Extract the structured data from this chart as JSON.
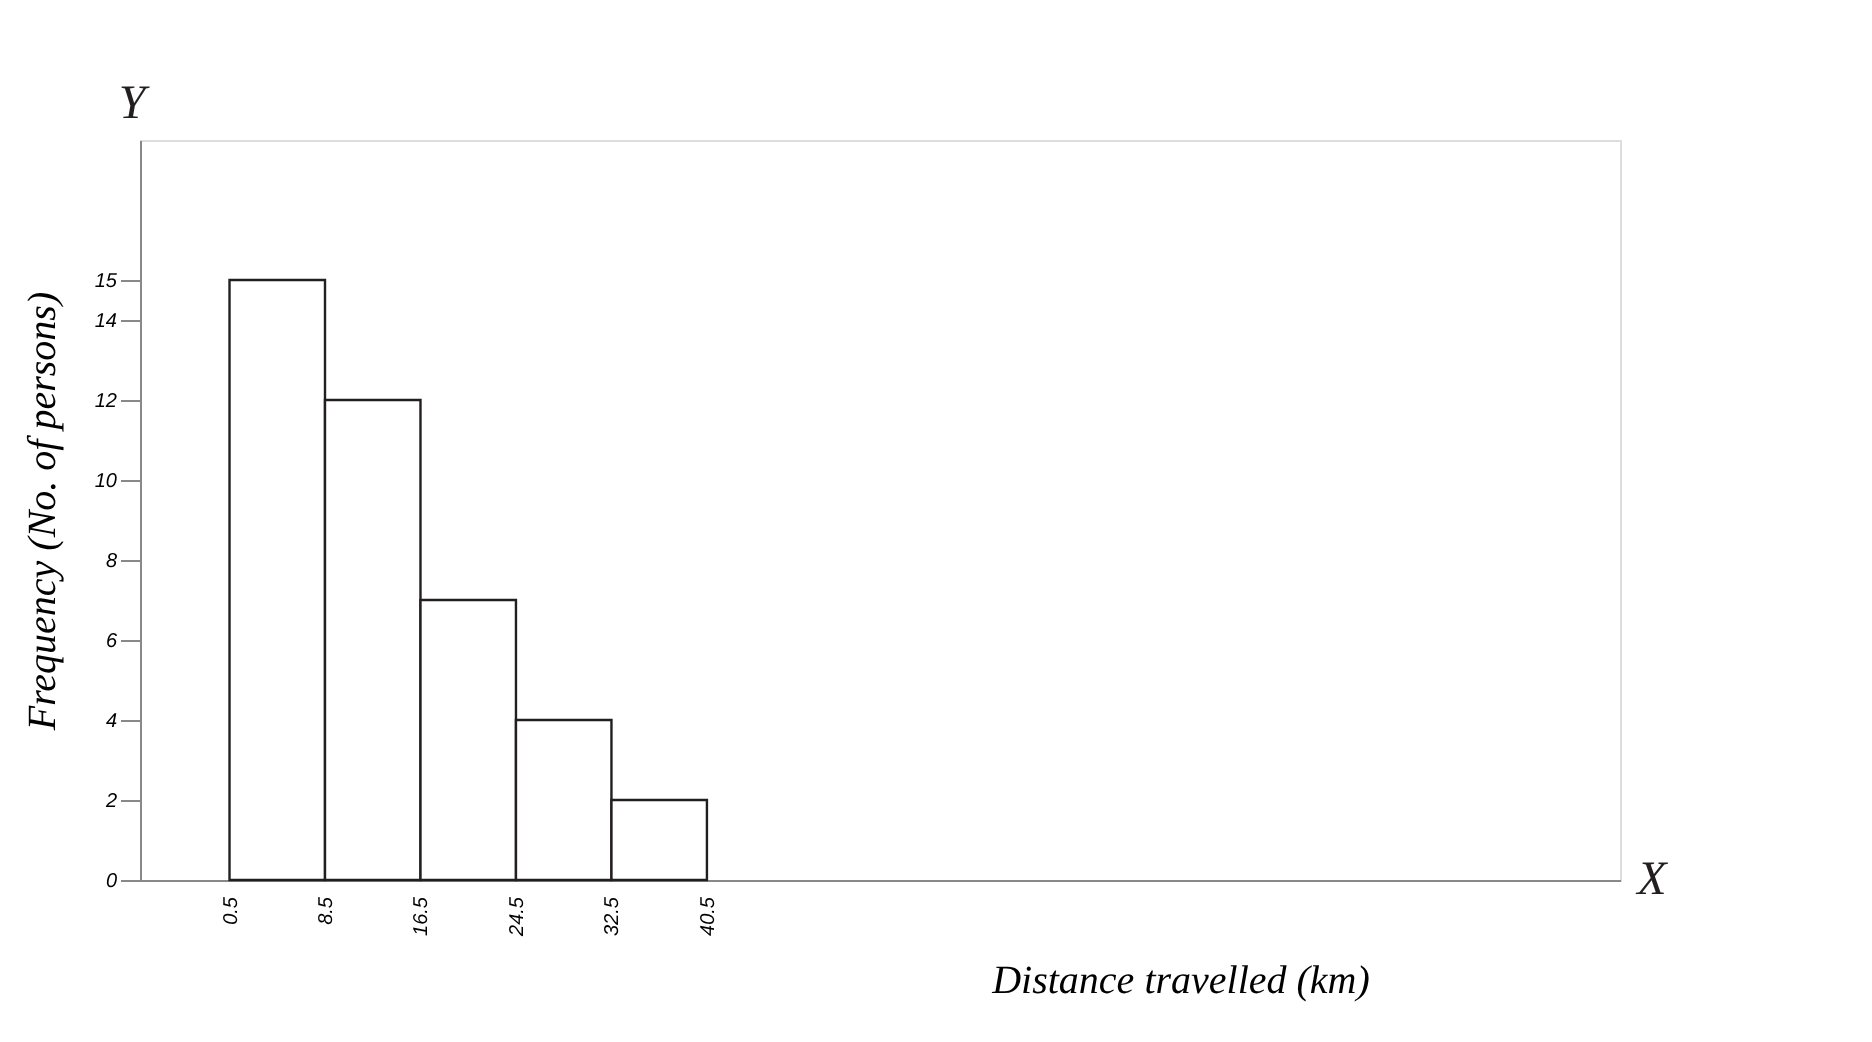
{
  "chart_data": {
    "type": "histogram",
    "bins": [
      0.5,
      8.5,
      16.5,
      24.5,
      32.5,
      40.5
    ],
    "values": [
      15,
      12,
      7,
      4,
      2
    ],
    "color": "#ffffff",
    "xlabel": "Distance travelled (km)",
    "ylabel": "Frequency (No. of persons)",
    "xlim": [
      -7,
      117
    ],
    "xticks": [
      0.5,
      8.5,
      16.5,
      24.5,
      32.5,
      40.5
    ],
    "ylim": [
      0,
      18.5
    ],
    "yticks": [
      0,
      2,
      4,
      6,
      8,
      10,
      12,
      14,
      15
    ],
    "grid": false,
    "annotations": [
      "Y",
      "X"
    ]
  }
}
